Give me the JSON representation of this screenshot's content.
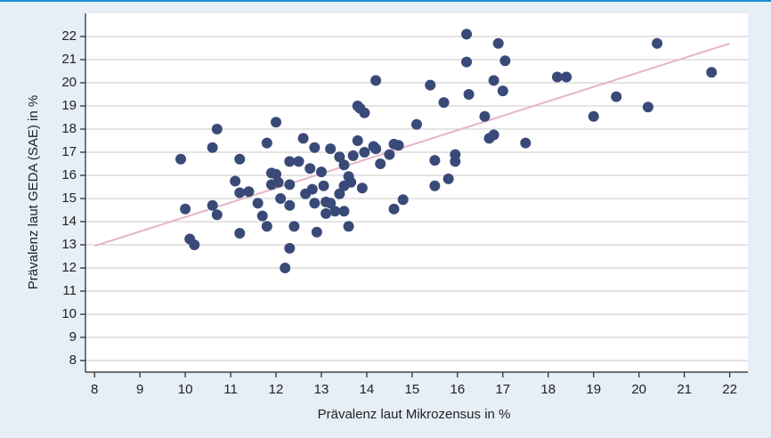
{
  "chart_data": {
    "type": "scatter",
    "x_label": "Prävalenz laut Mikrozensus in %",
    "y_label": "Prävalenz laut GEDA (SAE) in %",
    "xlim": [
      7.8,
      22.4
    ],
    "ylim": [
      7.5,
      23
    ],
    "xticks": [
      8,
      9,
      10,
      11,
      12,
      13,
      14,
      15,
      16,
      17,
      18,
      19,
      20,
      21,
      22
    ],
    "yticks": [
      8,
      9,
      10,
      11,
      12,
      13,
      14,
      15,
      16,
      17,
      18,
      19,
      20,
      21,
      22
    ],
    "grid": true,
    "color": "#3a4a78",
    "x": [
      9.9,
      10.0,
      10.1,
      10.2,
      10.6,
      10.6,
      10.7,
      10.7,
      11.1,
      11.2,
      11.2,
      11.2,
      11.4,
      11.6,
      11.7,
      11.8,
      11.8,
      11.9,
      11.9,
      12.0,
      12.0,
      12.05,
      12.1,
      12.2,
      12.3,
      12.3,
      12.3,
      12.3,
      12.4,
      12.5,
      12.6,
      12.65,
      12.75,
      12.8,
      12.85,
      12.85,
      12.9,
      13.0,
      13.05,
      13.1,
      13.1,
      13.2,
      13.2,
      13.3,
      13.4,
      13.4,
      13.5,
      13.5,
      13.5,
      13.6,
      13.6,
      13.65,
      13.7,
      13.8,
      13.8,
      13.85,
      13.9,
      13.95,
      13.95,
      14.15,
      14.2,
      14.2,
      14.3,
      14.5,
      14.6,
      14.6,
      14.7,
      14.8,
      15.1,
      15.4,
      15.5,
      15.5,
      15.7,
      15.8,
      15.95,
      15.95,
      16.2,
      16.2,
      16.25,
      16.6,
      16.7,
      16.8,
      16.8,
      16.9,
      17.0,
      17.05,
      17.5,
      18.2,
      18.4,
      19.0,
      19.5,
      20.2,
      20.4,
      21.6
    ],
    "y": [
      16.7,
      14.55,
      13.25,
      13.0,
      17.2,
      14.7,
      18.0,
      14.3,
      15.75,
      16.7,
      15.25,
      13.5,
      15.3,
      14.8,
      14.25,
      17.4,
      13.8,
      16.1,
      15.6,
      16.05,
      18.3,
      15.7,
      15.0,
      12.0,
      15.6,
      16.6,
      14.7,
      12.85,
      13.8,
      16.6,
      17.6,
      15.2,
      16.3,
      15.4,
      17.2,
      14.8,
      13.55,
      16.15,
      15.55,
      14.35,
      14.85,
      17.15,
      14.8,
      14.45,
      15.2,
      16.8,
      16.45,
      14.45,
      15.55,
      15.95,
      13.8,
      15.7,
      16.85,
      17.5,
      19.0,
      18.9,
      15.45,
      18.7,
      17.0,
      17.25,
      17.15,
      20.1,
      16.5,
      16.9,
      17.35,
      14.55,
      17.3,
      14.95,
      18.2,
      19.9,
      16.65,
      15.55,
      19.15,
      15.85,
      16.9,
      16.6,
      22.1,
      20.9,
      19.5,
      18.55,
      17.6,
      20.1,
      17.75,
      21.7,
      19.65,
      20.95,
      17.4,
      20.25,
      20.25,
      18.55,
      19.4,
      18.95,
      21.7,
      20.45
    ],
    "fit_line": {
      "x": [
        8,
        22
      ],
      "y": [
        12.95,
        21.7
      ],
      "color": "#e8b5c5"
    }
  }
}
